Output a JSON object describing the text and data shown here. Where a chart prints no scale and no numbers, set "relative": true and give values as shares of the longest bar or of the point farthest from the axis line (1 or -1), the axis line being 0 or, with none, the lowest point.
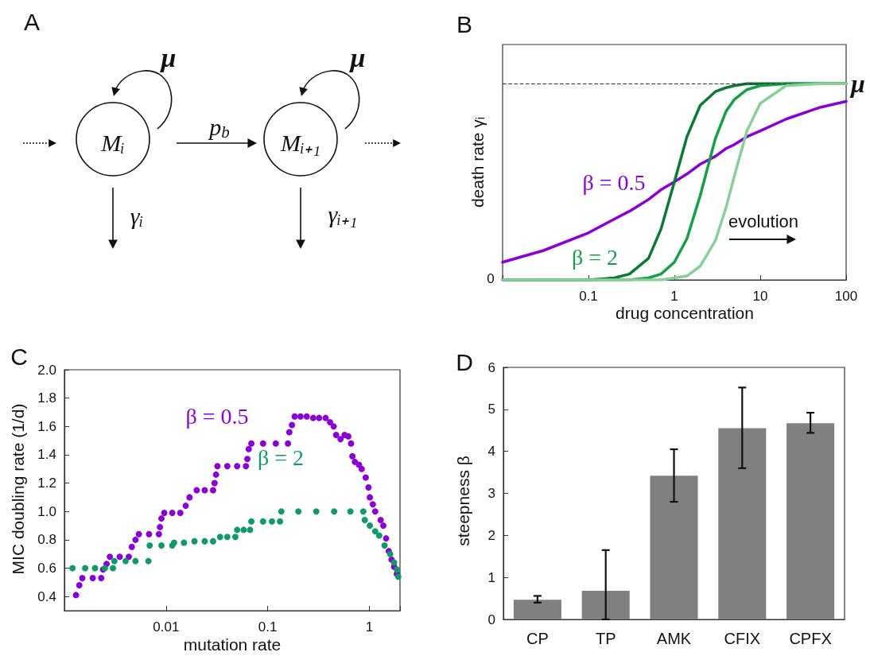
{
  "chart_data": [
    {
      "type": "other",
      "title": "A",
      "annotations": [
        "μ",
        "Mᵢ",
        "p$_{b}$",
        "Mᵢ₊₁",
        "μ",
        "γᵢ",
        "γᵢ₊₁"
      ]
    },
    {
      "type": "line",
      "title": "B",
      "xlabel": "drug concentration",
      "ylabel": "death rate γᵢ",
      "log": "x",
      "relative": true,
      "xlim": [
        0.01,
        100
      ],
      "xticks": [
        0.1,
        1,
        10,
        100
      ],
      "x": [
        0.01,
        0.03,
        0.1,
        0.2,
        0.3,
        0.5,
        0.7,
        1,
        1.4,
        2,
        3,
        4,
        5,
        7,
        10,
        20,
        50,
        100
      ],
      "series": [
        {
          "name": "β = 0.5",
          "color": "#8a00d6",
          "values": [
            0.09,
            0.15,
            0.24,
            0.31,
            0.35,
            0.41,
            0.46,
            0.5,
            0.54,
            0.59,
            0.63,
            0.67,
            0.69,
            0.73,
            0.76,
            0.82,
            0.88,
            0.91
          ]
        },
        {
          "color": "#0b7a33",
          "values": [
            0,
            0,
            0,
            0.01,
            0.03,
            0.11,
            0.26,
            0.5,
            0.73,
            0.89,
            0.96,
            0.98,
            0.99,
            1,
            1,
            1,
            1,
            1
          ]
        },
        {
          "name": "β = 2",
          "color": "#14a046",
          "values": [
            0,
            0,
            0,
            0,
            0,
            0.01,
            0.03,
            0.09,
            0.21,
            0.43,
            0.72,
            0.86,
            0.92,
            0.97,
            0.99,
            1,
            1,
            1
          ]
        },
        {
          "color": "#88cf98",
          "values": [
            0,
            0,
            0,
            0,
            0,
            0,
            0,
            0.01,
            0.02,
            0.07,
            0.2,
            0.37,
            0.53,
            0.76,
            0.9,
            0.99,
            1,
            1
          ]
        }
      ],
      "ref_lines": [
        {
          "axis": "y",
          "value": 1,
          "label": "μ",
          "color": "#333333",
          "line_style": "dashed"
        }
      ],
      "annotations": [
        "evolution",
        "0"
      ]
    },
    {
      "type": "scatter",
      "title": "C",
      "xlabel": "mutation rate",
      "ylabel": "MIC doubling rate (1/d)",
      "log": "x",
      "marker": "circle",
      "xlim": [
        0.001,
        2
      ],
      "xticks": [
        0.01,
        0.1,
        1
      ],
      "ylim": [
        0.3,
        2.0
      ],
      "yticks": [
        0.4,
        0.6,
        0.8,
        {
          "value": 1,
          "label": "1.0"
        },
        1.2,
        1.4,
        1.6,
        1.8,
        {
          "value": 2,
          "label": "2.0"
        }
      ],
      "series": [
        {
          "name": "β = 0.5",
          "color": "#8c00d6",
          "x": [
            0.0013,
            0.0014,
            0.0015,
            0.0019,
            0.0023,
            0.0024,
            0.0026,
            0.0028,
            0.0035,
            0.0043,
            0.0046,
            0.005,
            0.0054,
            0.0068,
            0.0085,
            0.0087,
            0.009,
            0.0096,
            0.0115,
            0.0138,
            0.0156,
            0.017,
            0.02,
            0.024,
            0.029,
            0.03,
            0.031,
            0.032,
            0.04,
            0.05,
            0.061,
            0.063,
            0.065,
            0.069,
            0.09,
            0.12,
            0.158,
            0.163,
            0.173,
            0.184,
            0.21,
            0.242,
            0.28,
            0.32,
            0.371,
            0.41,
            0.445,
            0.47,
            0.52,
            0.57,
            0.62,
            0.66,
            0.68,
            0.72,
            0.79,
            0.84,
            0.92,
            0.98,
            1.01,
            1.08,
            1.14,
            1.29,
            1.37,
            1.46,
            1.55,
            1.65,
            1.75,
            1.86
          ],
          "values": [
            0.41,
            0.48,
            0.53,
            0.53,
            0.53,
            0.59,
            0.63,
            0.68,
            0.68,
            0.68,
            0.75,
            0.8,
            0.84,
            0.84,
            0.84,
            0.89,
            0.95,
            0.99,
            0.99,
            0.99,
            1.04,
            1.1,
            1.15,
            1.15,
            1.15,
            1.2,
            1.26,
            1.32,
            1.32,
            1.32,
            1.32,
            1.37,
            1.44,
            1.48,
            1.48,
            1.48,
            1.48,
            1.56,
            1.61,
            1.67,
            1.67,
            1.67,
            1.66,
            1.66,
            1.66,
            1.63,
            1.6,
            1.54,
            1.51,
            1.54,
            1.53,
            1.48,
            1.39,
            1.35,
            1.33,
            1.3,
            1.24,
            1.17,
            1.1,
            1.05,
            1.0,
            0.94,
            0.9,
            0.81,
            0.72,
            0.66,
            0.61,
            0.56
          ]
        },
        {
          "name": "β = 2",
          "color": "#109a6a",
          "x": [
            0.0012,
            0.0016,
            0.002,
            0.0025,
            0.003,
            0.0031,
            0.004,
            0.005,
            0.0067,
            0.0069,
            0.009,
            0.0115,
            0.012,
            0.015,
            0.019,
            0.024,
            0.029,
            0.034,
            0.04,
            0.048,
            0.05,
            0.058,
            0.067,
            0.069,
            0.09,
            0.11,
            0.132,
            0.136,
            0.2,
            0.3,
            0.45,
            0.65,
            0.87,
            0.9,
            1.01,
            1.14,
            1.25,
            1.41,
            1.6,
            1.75,
            1.86,
            1.92
          ],
          "values": [
            0.6,
            0.6,
            0.6,
            0.6,
            0.6,
            0.65,
            0.65,
            0.65,
            0.65,
            0.76,
            0.76,
            0.76,
            0.78,
            0.78,
            0.79,
            0.79,
            0.79,
            0.82,
            0.82,
            0.82,
            0.87,
            0.87,
            0.87,
            0.93,
            0.93,
            0.93,
            0.93,
            1.0,
            1.0,
            1.0,
            1.0,
            1.0,
            1.0,
            0.94,
            0.9,
            0.86,
            0.83,
            0.76,
            0.7,
            0.64,
            0.59,
            0.54
          ]
        }
      ]
    },
    {
      "type": "bar",
      "title": "D",
      "ylabel": "steepness β",
      "categories": [
        "CP",
        "TP",
        "AMK",
        "CFIX",
        "CPFX"
      ],
      "values": [
        0.47,
        0.68,
        3.42,
        4.55,
        4.67
      ],
      "color": "#808080",
      "errors": [
        [
          0.4,
          0.56
        ],
        [
          0,
          1.65
        ],
        [
          2.8,
          4.05
        ],
        [
          3.6,
          5.52
        ],
        [
          4.44,
          4.92
        ]
      ],
      "ylim": [
        0,
        6
      ],
      "yticks": [
        0,
        1,
        2,
        3,
        4,
        5,
        6
      ]
    }
  ]
}
